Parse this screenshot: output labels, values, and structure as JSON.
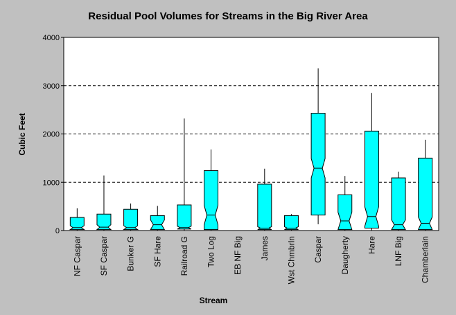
{
  "chart_data": {
    "type": "box",
    "title": "Residual Pool Volumes for Streams in the Big River Area",
    "xlabel": "Stream",
    "ylabel": "Cubic Feet",
    "ylim": [
      0,
      4000
    ],
    "yticks": [
      0,
      1000,
      2000,
      3000,
      4000
    ],
    "grid": "horizontal-dashed",
    "box_color": "#00ffff",
    "categories": [
      "NF Caspar",
      "SF Caspar",
      "Bunker G",
      "SF Hare",
      "Railroad G",
      "Two Log",
      "EB NF Big",
      "James",
      "Wst Chmbrln",
      "Caspar",
      "Daugherty",
      "Hare",
      "LNF Big",
      "Chamberlain"
    ],
    "boxes": [
      {
        "category": "NF Caspar",
        "min": 0,
        "q1": 20,
        "median": 60,
        "q3": 270,
        "max": 460
      },
      {
        "category": "SF Caspar",
        "min": 0,
        "q1": 20,
        "median": 70,
        "q3": 340,
        "max": 1140
      },
      {
        "category": "Bunker G",
        "min": 0,
        "q1": 20,
        "median": 60,
        "q3": 440,
        "max": 560
      },
      {
        "category": "SF Hare",
        "min": 0,
        "q1": 20,
        "median": 120,
        "q3": 310,
        "max": 510
      },
      {
        "category": "Railroad G",
        "min": 0,
        "q1": 30,
        "median": 60,
        "q3": 530,
        "max": 2320
      },
      {
        "category": "Two Log",
        "min": 0,
        "q1": 20,
        "median": 320,
        "q3": 1240,
        "max": 1680
      },
      {
        "category": "EB NF Big",
        "min": null,
        "q1": null,
        "median": null,
        "q3": null,
        "max": null
      },
      {
        "category": "James",
        "min": 0,
        "q1": 20,
        "median": 50,
        "q3": 960,
        "max": 1280
      },
      {
        "category": "Wst Chmbrln",
        "min": 0,
        "q1": 20,
        "median": 50,
        "q3": 310,
        "max": 340
      },
      {
        "category": "Caspar",
        "min": 130,
        "q1": 320,
        "median": 1290,
        "q3": 2430,
        "max": 3360
      },
      {
        "category": "Daugherty",
        "min": 0,
        "q1": 20,
        "median": 200,
        "q3": 740,
        "max": 1130
      },
      {
        "category": "Hare",
        "min": 0,
        "q1": 50,
        "median": 290,
        "q3": 2060,
        "max": 2850
      },
      {
        "category": "LNF Big",
        "min": 0,
        "q1": 20,
        "median": 120,
        "q3": 1090,
        "max": 1220
      },
      {
        "category": "Chamberlain",
        "min": 0,
        "q1": 20,
        "median": 150,
        "q3": 1500,
        "max": 1880
      }
    ]
  }
}
